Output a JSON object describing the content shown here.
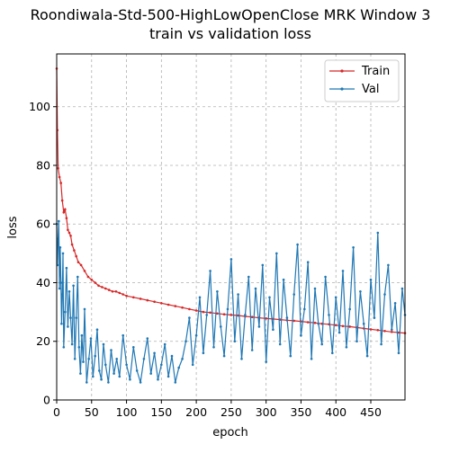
{
  "chart_data": {
    "type": "line",
    "title": "Roondiwala-Std-500-HighLowOpenClose MRK Window 3",
    "subtitle": "train vs validation loss",
    "xlabel": "epoch",
    "ylabel": "loss",
    "xlim": [
      0,
      499
    ],
    "ylim": [
      0,
      118
    ],
    "x_ticks": [
      0,
      50,
      100,
      150,
      200,
      250,
      300,
      350,
      400,
      450
    ],
    "y_ticks": [
      0,
      20,
      40,
      60,
      80,
      100
    ],
    "grid": true,
    "legend_position": "top-right",
    "series": [
      {
        "name": "Train",
        "color": "#d62728",
        "x": [
          0,
          1,
          2,
          4,
          6,
          8,
          10,
          12,
          14,
          16,
          18,
          20,
          22,
          25,
          28,
          31,
          35,
          40,
          45,
          50,
          55,
          60,
          65,
          70,
          75,
          80,
          85,
          90,
          95,
          100,
          110,
          120,
          130,
          140,
          150,
          160,
          170,
          180,
          190,
          200,
          210,
          220,
          230,
          240,
          250,
          260,
          270,
          280,
          290,
          300,
          310,
          320,
          330,
          340,
          350,
          360,
          370,
          380,
          390,
          400,
          410,
          420,
          430,
          440,
          450,
          460,
          470,
          480,
          490,
          499
        ],
        "y": [
          113,
          92,
          79,
          76,
          74,
          68,
          64,
          65,
          62,
          58,
          57,
          56,
          53,
          51,
          49,
          47,
          46,
          44,
          42,
          41,
          40,
          39,
          38.5,
          38,
          37.5,
          37,
          37,
          36.5,
          36,
          35.5,
          35,
          34.5,
          34,
          33.5,
          33,
          32.5,
          32,
          31.5,
          31,
          30.5,
          30,
          29.8,
          29.5,
          29.2,
          29,
          28.8,
          28.5,
          28.3,
          28,
          27.8,
          27.6,
          27.4,
          27.2,
          27,
          26.8,
          26.5,
          26.3,
          26,
          25.8,
          25.5,
          25.2,
          25,
          24.7,
          24.4,
          24.1,
          23.8,
          23.5,
          23.2,
          23,
          22.8
        ]
      },
      {
        "name": "Val",
        "color": "#1f77b4",
        "x": [
          0,
          1,
          2,
          3,
          4,
          5,
          6,
          7,
          8,
          9,
          10,
          12,
          14,
          16,
          18,
          20,
          22,
          24,
          26,
          28,
          30,
          32,
          34,
          36,
          38,
          40,
          43,
          46,
          49,
          52,
          55,
          58,
          61,
          64,
          67,
          70,
          74,
          78,
          82,
          86,
          90,
          95,
          100,
          105,
          110,
          115,
          120,
          125,
          130,
          135,
          140,
          145,
          150,
          155,
          160,
          165,
          170,
          175,
          180,
          185,
          190,
          195,
          200,
          205,
          210,
          215,
          220,
          225,
          230,
          235,
          240,
          245,
          250,
          255,
          260,
          265,
          270,
          275,
          280,
          285,
          290,
          295,
          300,
          305,
          310,
          315,
          320,
          325,
          330,
          335,
          340,
          345,
          350,
          355,
          360,
          365,
          370,
          375,
          380,
          385,
          390,
          395,
          400,
          405,
          410,
          415,
          420,
          425,
          430,
          435,
          440,
          445,
          450,
          455,
          460,
          465,
          470,
          475,
          480,
          485,
          490,
          495,
          499
        ],
        "y": [
          60,
          46,
          55,
          61,
          38,
          52,
          40,
          26,
          36,
          50,
          18,
          30,
          45,
          25,
          37,
          28,
          19,
          39,
          14,
          28,
          42,
          18,
          9,
          22,
          13,
          31,
          6,
          14,
          21,
          8,
          15,
          24,
          10,
          7,
          19,
          12,
          6,
          17,
          9,
          14,
          8,
          22,
          12,
          7,
          18,
          10,
          6,
          14,
          21,
          9,
          16,
          7,
          12,
          19,
          8,
          15,
          6,
          11,
          14,
          20,
          28,
          12,
          22,
          35,
          16,
          29,
          44,
          18,
          37,
          25,
          15,
          31,
          48,
          20,
          36,
          14,
          29,
          42,
          17,
          38,
          25,
          46,
          13,
          35,
          24,
          50,
          19,
          41,
          28,
          15,
          36,
          53,
          22,
          31,
          47,
          14,
          38,
          26,
          19,
          42,
          29,
          16,
          35,
          23,
          44,
          18,
          31,
          52,
          20,
          37,
          26,
          15,
          41,
          28,
          57,
          19,
          36,
          46,
          24,
          33,
          16,
          38,
          29
        ]
      }
    ]
  }
}
